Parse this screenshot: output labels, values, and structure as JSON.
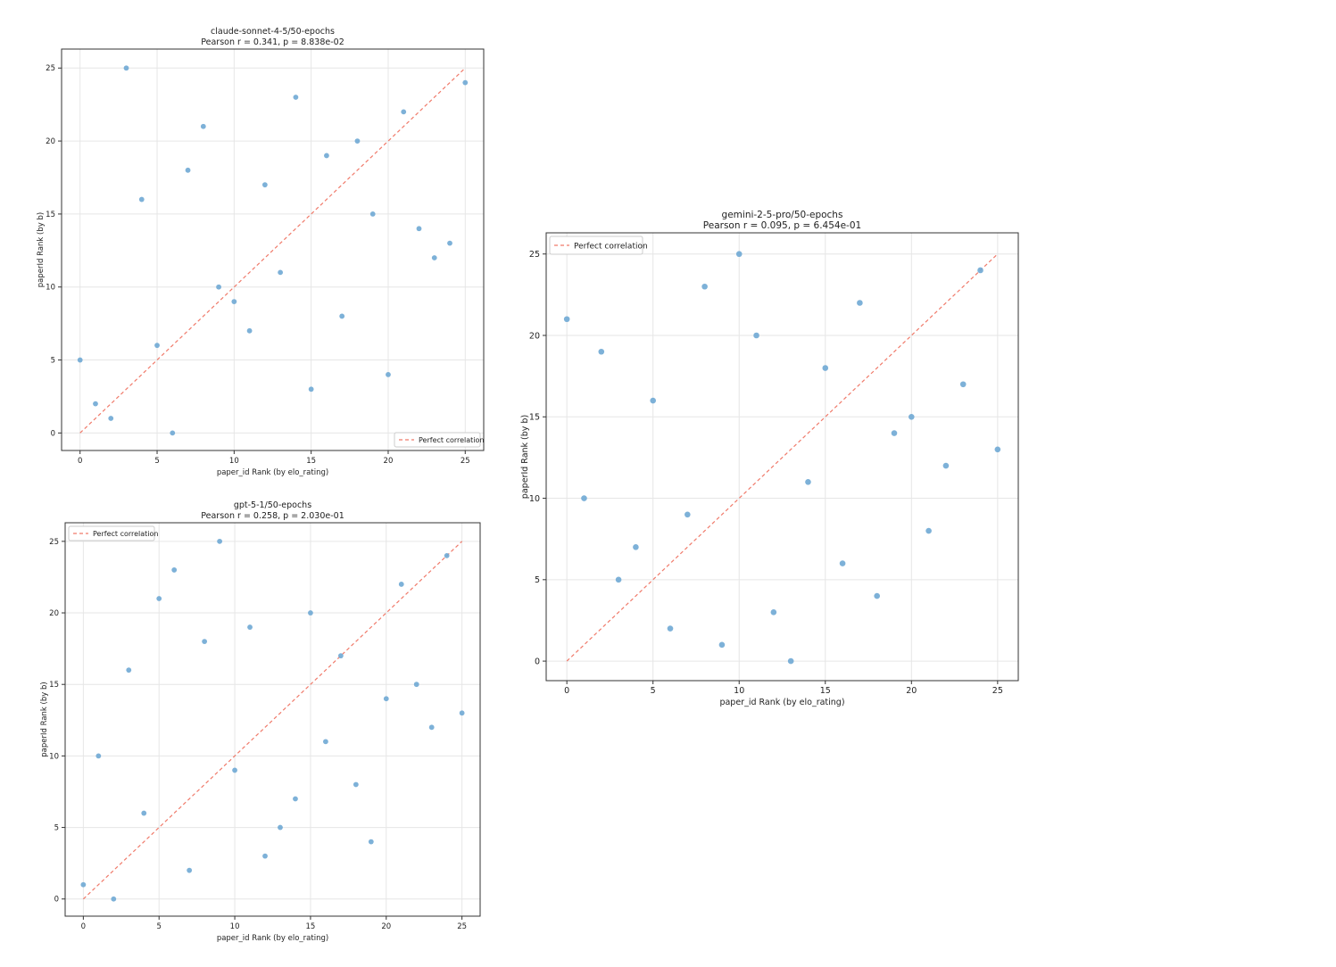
{
  "colors": {
    "points": "#6fa8d4",
    "reference_line": "#f07a6a",
    "grid": "#e6e6e6",
    "axes": "#333333"
  },
  "chart_data": [
    {
      "type": "scatter",
      "title": "claude-sonnet-4-5/50-epochs",
      "subtitle": "Pearson r = 0.341, p = 8.838e-02",
      "xlabel": "paper_id Rank (by elo_rating)",
      "ylabel": "paperId Rank (by b)",
      "xlim": [
        -1.2,
        26.2
      ],
      "ylim": [
        -1.2,
        26.3
      ],
      "xticks": [
        0,
        5,
        10,
        15,
        20,
        25
      ],
      "yticks": [
        0,
        5,
        10,
        15,
        20,
        25
      ],
      "grid": true,
      "legend": {
        "position": "bottom-right",
        "entries": [
          "Perfect correlation"
        ]
      },
      "reference_line": {
        "name": "Perfect correlation",
        "from": [
          0,
          0
        ],
        "to": [
          25,
          25
        ],
        "style": "dashed"
      },
      "x": [
        0,
        1,
        2,
        3,
        4,
        5,
        6,
        7,
        8,
        9,
        10,
        11,
        12,
        13,
        14,
        15,
        16,
        17,
        18,
        19,
        20,
        21,
        22,
        23,
        24,
        25
      ],
      "y": [
        5,
        2,
        1,
        25,
        16,
        6,
        0,
        18,
        21,
        10,
        9,
        7,
        17,
        11,
        23,
        3,
        19,
        8,
        20,
        15,
        4,
        22,
        14,
        12,
        13,
        24
      ]
    },
    {
      "type": "scatter",
      "title": "gpt-5-1/50-epochs",
      "subtitle": "Pearson r = 0.258, p = 2.030e-01",
      "xlabel": "paper_id Rank (by elo_rating)",
      "ylabel": "paperId Rank (by b)",
      "xlim": [
        -1.2,
        26.2
      ],
      "ylim": [
        -1.2,
        26.3
      ],
      "xticks": [
        0,
        5,
        10,
        15,
        20,
        25
      ],
      "yticks": [
        0,
        5,
        10,
        15,
        20,
        25
      ],
      "grid": true,
      "legend": {
        "position": "top-left",
        "entries": [
          "Perfect correlation"
        ]
      },
      "reference_line": {
        "name": "Perfect correlation",
        "from": [
          0,
          0
        ],
        "to": [
          25,
          25
        ],
        "style": "dashed"
      },
      "x": [
        0,
        1,
        2,
        3,
        4,
        5,
        6,
        7,
        8,
        9,
        10,
        11,
        12,
        13,
        14,
        15,
        16,
        17,
        18,
        19,
        20,
        21,
        22,
        23,
        24,
        25
      ],
      "y": [
        1,
        10,
        0,
        16,
        6,
        21,
        23,
        2,
        18,
        25,
        9,
        19,
        3,
        5,
        7,
        20,
        11,
        17,
        8,
        4,
        14,
        22,
        15,
        12,
        24,
        13
      ]
    },
    {
      "type": "scatter",
      "title": "gemini-2-5-pro/50-epochs",
      "subtitle": "Pearson r = 0.095, p = 6.454e-01",
      "xlabel": "paper_id Rank (by elo_rating)",
      "ylabel": "paperId Rank (by b)",
      "xlim": [
        -1.2,
        26.2
      ],
      "ylim": [
        -1.2,
        26.3
      ],
      "xticks": [
        0,
        5,
        10,
        15,
        20,
        25
      ],
      "yticks": [
        0,
        5,
        10,
        15,
        20,
        25
      ],
      "grid": true,
      "legend": {
        "position": "top-left",
        "entries": [
          "Perfect correlation"
        ]
      },
      "reference_line": {
        "name": "Perfect correlation",
        "from": [
          0,
          0
        ],
        "to": [
          25,
          25
        ],
        "style": "dashed"
      },
      "x": [
        0,
        1,
        2,
        3,
        4,
        5,
        6,
        7,
        8,
        9,
        10,
        11,
        12,
        13,
        14,
        15,
        16,
        17,
        18,
        19,
        20,
        21,
        22,
        23,
        24,
        25
      ],
      "y": [
        21,
        10,
        19,
        5,
        7,
        16,
        2,
        9,
        23,
        1,
        25,
        20,
        3,
        0,
        11,
        18,
        6,
        22,
        4,
        14,
        15,
        8,
        12,
        17,
        24,
        13
      ]
    }
  ]
}
